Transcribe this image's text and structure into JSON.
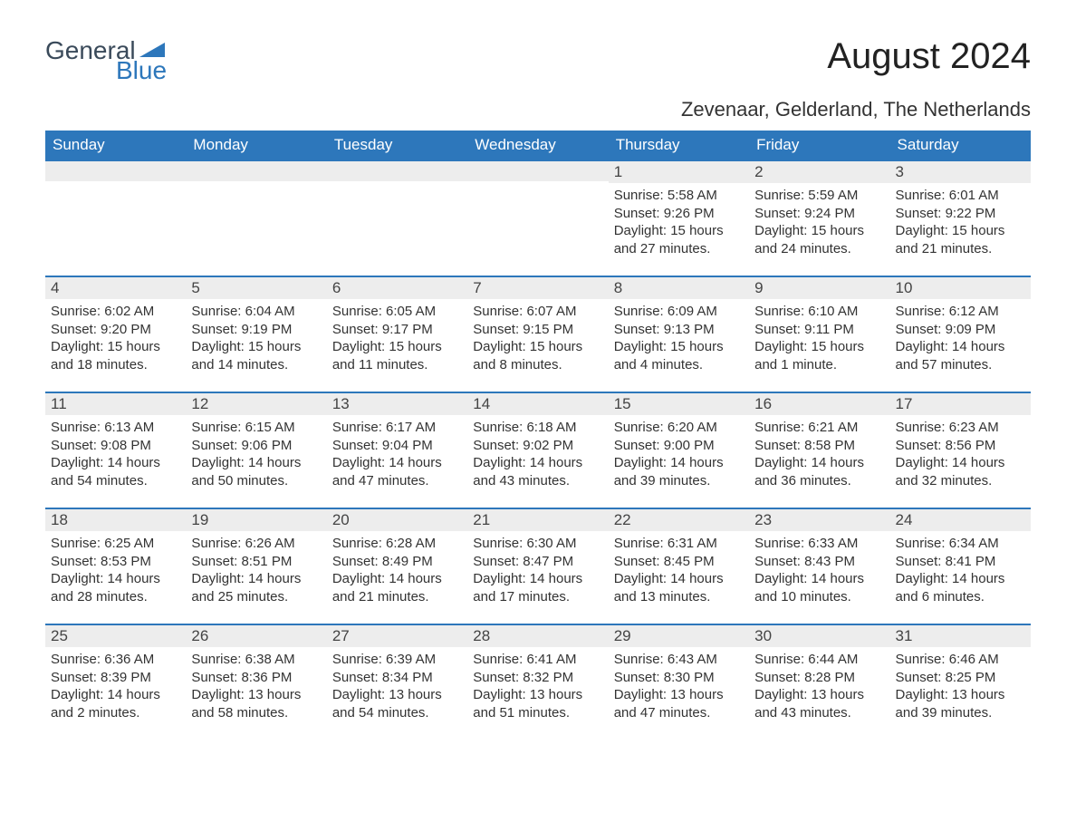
{
  "logo": {
    "text1": "General",
    "text2": "Blue",
    "tri_color": "#2d77bb"
  },
  "title": "August 2024",
  "subtitle": "Zevenaar, Gelderland, The Netherlands",
  "colors": {
    "header_bg": "#2d77bb",
    "header_text": "#ffffff",
    "daynum_bg": "#ededed",
    "daynum_border": "#2d77bb",
    "body_text": "#333333",
    "page_bg": "#ffffff"
  },
  "typography": {
    "title_fontsize": 40,
    "subtitle_fontsize": 22,
    "dow_fontsize": 17,
    "daynum_fontsize": 17,
    "body_fontsize": 15
  },
  "dow": [
    "Sunday",
    "Monday",
    "Tuesday",
    "Wednesday",
    "Thursday",
    "Friday",
    "Saturday"
  ],
  "weeks": [
    [
      null,
      null,
      null,
      null,
      {
        "n": "1",
        "sunrise": "Sunrise: 5:58 AM",
        "sunset": "Sunset: 9:26 PM",
        "day": "Daylight: 15 hours and 27 minutes."
      },
      {
        "n": "2",
        "sunrise": "Sunrise: 5:59 AM",
        "sunset": "Sunset: 9:24 PM",
        "day": "Daylight: 15 hours and 24 minutes."
      },
      {
        "n": "3",
        "sunrise": "Sunrise: 6:01 AM",
        "sunset": "Sunset: 9:22 PM",
        "day": "Daylight: 15 hours and 21 minutes."
      }
    ],
    [
      {
        "n": "4",
        "sunrise": "Sunrise: 6:02 AM",
        "sunset": "Sunset: 9:20 PM",
        "day": "Daylight: 15 hours and 18 minutes."
      },
      {
        "n": "5",
        "sunrise": "Sunrise: 6:04 AM",
        "sunset": "Sunset: 9:19 PM",
        "day": "Daylight: 15 hours and 14 minutes."
      },
      {
        "n": "6",
        "sunrise": "Sunrise: 6:05 AM",
        "sunset": "Sunset: 9:17 PM",
        "day": "Daylight: 15 hours and 11 minutes."
      },
      {
        "n": "7",
        "sunrise": "Sunrise: 6:07 AM",
        "sunset": "Sunset: 9:15 PM",
        "day": "Daylight: 15 hours and 8 minutes."
      },
      {
        "n": "8",
        "sunrise": "Sunrise: 6:09 AM",
        "sunset": "Sunset: 9:13 PM",
        "day": "Daylight: 15 hours and 4 minutes."
      },
      {
        "n": "9",
        "sunrise": "Sunrise: 6:10 AM",
        "sunset": "Sunset: 9:11 PM",
        "day": "Daylight: 15 hours and 1 minute."
      },
      {
        "n": "10",
        "sunrise": "Sunrise: 6:12 AM",
        "sunset": "Sunset: 9:09 PM",
        "day": "Daylight: 14 hours and 57 minutes."
      }
    ],
    [
      {
        "n": "11",
        "sunrise": "Sunrise: 6:13 AM",
        "sunset": "Sunset: 9:08 PM",
        "day": "Daylight: 14 hours and 54 minutes."
      },
      {
        "n": "12",
        "sunrise": "Sunrise: 6:15 AM",
        "sunset": "Sunset: 9:06 PM",
        "day": "Daylight: 14 hours and 50 minutes."
      },
      {
        "n": "13",
        "sunrise": "Sunrise: 6:17 AM",
        "sunset": "Sunset: 9:04 PM",
        "day": "Daylight: 14 hours and 47 minutes."
      },
      {
        "n": "14",
        "sunrise": "Sunrise: 6:18 AM",
        "sunset": "Sunset: 9:02 PM",
        "day": "Daylight: 14 hours and 43 minutes."
      },
      {
        "n": "15",
        "sunrise": "Sunrise: 6:20 AM",
        "sunset": "Sunset: 9:00 PM",
        "day": "Daylight: 14 hours and 39 minutes."
      },
      {
        "n": "16",
        "sunrise": "Sunrise: 6:21 AM",
        "sunset": "Sunset: 8:58 PM",
        "day": "Daylight: 14 hours and 36 minutes."
      },
      {
        "n": "17",
        "sunrise": "Sunrise: 6:23 AM",
        "sunset": "Sunset: 8:56 PM",
        "day": "Daylight: 14 hours and 32 minutes."
      }
    ],
    [
      {
        "n": "18",
        "sunrise": "Sunrise: 6:25 AM",
        "sunset": "Sunset: 8:53 PM",
        "day": "Daylight: 14 hours and 28 minutes."
      },
      {
        "n": "19",
        "sunrise": "Sunrise: 6:26 AM",
        "sunset": "Sunset: 8:51 PM",
        "day": "Daylight: 14 hours and 25 minutes."
      },
      {
        "n": "20",
        "sunrise": "Sunrise: 6:28 AM",
        "sunset": "Sunset: 8:49 PM",
        "day": "Daylight: 14 hours and 21 minutes."
      },
      {
        "n": "21",
        "sunrise": "Sunrise: 6:30 AM",
        "sunset": "Sunset: 8:47 PM",
        "day": "Daylight: 14 hours and 17 minutes."
      },
      {
        "n": "22",
        "sunrise": "Sunrise: 6:31 AM",
        "sunset": "Sunset: 8:45 PM",
        "day": "Daylight: 14 hours and 13 minutes."
      },
      {
        "n": "23",
        "sunrise": "Sunrise: 6:33 AM",
        "sunset": "Sunset: 8:43 PM",
        "day": "Daylight: 14 hours and 10 minutes."
      },
      {
        "n": "24",
        "sunrise": "Sunrise: 6:34 AM",
        "sunset": "Sunset: 8:41 PM",
        "day": "Daylight: 14 hours and 6 minutes."
      }
    ],
    [
      {
        "n": "25",
        "sunrise": "Sunrise: 6:36 AM",
        "sunset": "Sunset: 8:39 PM",
        "day": "Daylight: 14 hours and 2 minutes."
      },
      {
        "n": "26",
        "sunrise": "Sunrise: 6:38 AM",
        "sunset": "Sunset: 8:36 PM",
        "day": "Daylight: 13 hours and 58 minutes."
      },
      {
        "n": "27",
        "sunrise": "Sunrise: 6:39 AM",
        "sunset": "Sunset: 8:34 PM",
        "day": "Daylight: 13 hours and 54 minutes."
      },
      {
        "n": "28",
        "sunrise": "Sunrise: 6:41 AM",
        "sunset": "Sunset: 8:32 PM",
        "day": "Daylight: 13 hours and 51 minutes."
      },
      {
        "n": "29",
        "sunrise": "Sunrise: 6:43 AM",
        "sunset": "Sunset: 8:30 PM",
        "day": "Daylight: 13 hours and 47 minutes."
      },
      {
        "n": "30",
        "sunrise": "Sunrise: 6:44 AM",
        "sunset": "Sunset: 8:28 PM",
        "day": "Daylight: 13 hours and 43 minutes."
      },
      {
        "n": "31",
        "sunrise": "Sunrise: 6:46 AM",
        "sunset": "Sunset: 8:25 PM",
        "day": "Daylight: 13 hours and 39 minutes."
      }
    ]
  ]
}
